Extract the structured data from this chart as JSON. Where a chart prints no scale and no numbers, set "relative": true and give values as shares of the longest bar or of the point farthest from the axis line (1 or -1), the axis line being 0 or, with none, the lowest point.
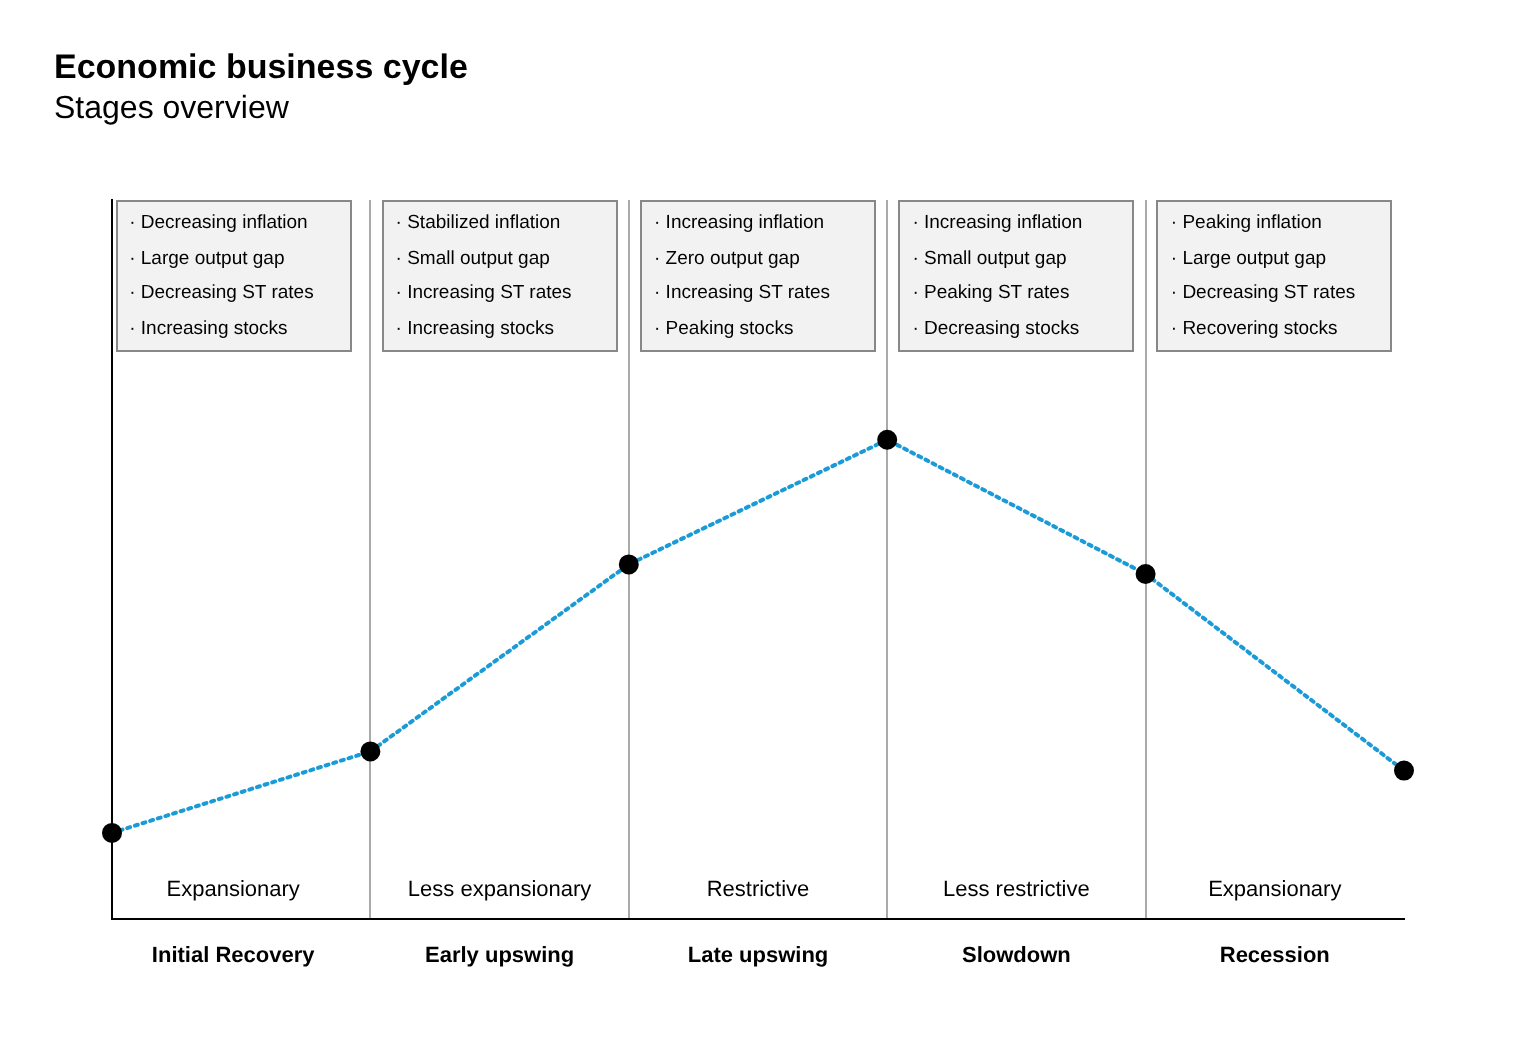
{
  "chart_data": {
    "type": "line",
    "title": "Economic business cycle",
    "subtitle": "Stages overview",
    "relative": true,
    "categories": [
      null,
      null,
      null,
      null,
      null,
      null
    ],
    "grid": "x",
    "legend": false,
    "marker": "circle",
    "line_style": "dotted",
    "series": [
      {
        "color": "#1a9ad6",
        "values": [
          0.18,
          0.35,
          0.74,
          1,
          0.72,
          0.31
        ]
      }
    ],
    "annotations": [
      "· Decreasing inflation\n· Large output gap\n· Decreasing ST rates\n· Increasing stocks",
      "Expansionary",
      "Initial Recovery",
      "· Stabilized inflation\n· Small output gap\n· Increasing ST rates\n· Increasing stocks",
      "Less expansionary",
      "Early upswing",
      "· Increasing inflation\n· Zero output gap\n· Increasing ST rates\n· Peaking stocks",
      "Restrictive",
      "Late upswing",
      "· Increasing inflation\n· Small output gap\n· Peaking ST rates\n· Decreasing stocks",
      "Less restrictive",
      "Slowdown",
      "· Peaking inflation\n· Large output gap\n· Decreasing ST rates\n· Recovering stocks",
      "Expansionary",
      "Recession"
    ]
  }
}
